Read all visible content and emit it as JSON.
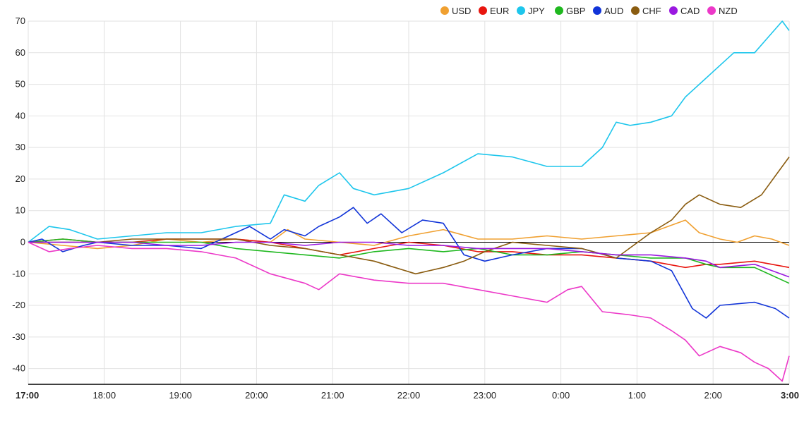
{
  "chart_data": {
    "type": "line",
    "title": "",
    "xlabel": "",
    "ylabel": "",
    "x_ticks": [
      "17:00",
      "18:00",
      "19:00",
      "20:00",
      "21:00",
      "22:00",
      "23:00",
      "0:00",
      "1:00",
      "2:00",
      "3:00"
    ],
    "x_ticks_bold": [
      "17:00",
      "3:00"
    ],
    "y_ticks": [
      70,
      60,
      50,
      40,
      30,
      20,
      10,
      0,
      -10,
      -20,
      -30,
      -40
    ],
    "ylim": [
      -45,
      70
    ],
    "x_range_hours": [
      0,
      10
    ],
    "grid": true,
    "legend_position": "top-right",
    "series": [
      {
        "name": "USD",
        "color": "#f0a030",
        "points": [
          [
            0,
            0
          ],
          [
            0.5,
            -1
          ],
          [
            1,
            -2
          ],
          [
            1.5,
            -1
          ],
          [
            2,
            1
          ],
          [
            2.5,
            0
          ],
          [
            3,
            1
          ],
          [
            3.5,
            0
          ],
          [
            3.75,
            4
          ],
          [
            4,
            1
          ],
          [
            4.5,
            0
          ],
          [
            5,
            -1
          ],
          [
            5.5,
            2
          ],
          [
            6,
            4
          ],
          [
            6.5,
            1
          ],
          [
            7,
            1
          ],
          [
            7.5,
            2
          ],
          [
            8,
            1
          ],
          [
            8.5,
            2
          ],
          [
            9,
            3
          ],
          [
            9.5,
            7
          ],
          [
            9.7,
            3
          ],
          [
            10,
            1
          ],
          [
            10.25,
            0
          ],
          [
            10.5,
            2
          ],
          [
            10.75,
            1
          ],
          [
            11,
            -1
          ]
        ]
      },
      {
        "name": "EUR",
        "color": "#e8150f",
        "points": [
          [
            0,
            0
          ],
          [
            0.5,
            1
          ],
          [
            1,
            0
          ],
          [
            1.5,
            0
          ],
          [
            2,
            1
          ],
          [
            2.5,
            1
          ],
          [
            3,
            1
          ],
          [
            3.5,
            0
          ],
          [
            4,
            -2
          ],
          [
            4.5,
            -4
          ],
          [
            5,
            -2
          ],
          [
            5.5,
            0
          ],
          [
            6,
            -1
          ],
          [
            6.5,
            -3
          ],
          [
            7,
            -3
          ],
          [
            7.5,
            -4
          ],
          [
            8,
            -4
          ],
          [
            8.5,
            -5
          ],
          [
            9,
            -6
          ],
          [
            9.5,
            -8
          ],
          [
            9.8,
            -7
          ],
          [
            10,
            -7
          ],
          [
            10.5,
            -6
          ],
          [
            11,
            -8
          ]
        ]
      },
      {
        "name": "JPY",
        "color": "#1ec6ec",
        "points": [
          [
            0,
            0
          ],
          [
            0.3,
            5
          ],
          [
            0.6,
            4
          ],
          [
            1,
            1
          ],
          [
            1.5,
            2
          ],
          [
            2,
            3
          ],
          [
            2.5,
            3
          ],
          [
            3,
            5
          ],
          [
            3.5,
            6
          ],
          [
            3.7,
            15
          ],
          [
            4,
            13
          ],
          [
            4.2,
            18
          ],
          [
            4.5,
            22
          ],
          [
            4.7,
            17
          ],
          [
            5,
            15
          ],
          [
            5.5,
            17
          ],
          [
            6,
            22
          ],
          [
            6.5,
            28
          ],
          [
            7,
            27
          ],
          [
            7.5,
            24
          ],
          [
            8,
            24
          ],
          [
            8.3,
            30
          ],
          [
            8.5,
            38
          ],
          [
            8.7,
            37
          ],
          [
            9,
            38
          ],
          [
            9.3,
            40
          ],
          [
            9.5,
            46
          ],
          [
            9.7,
            50
          ],
          [
            10,
            56
          ],
          [
            10.2,
            60
          ],
          [
            10.5,
            60
          ],
          [
            10.7,
            65
          ],
          [
            10.9,
            70
          ],
          [
            11,
            67
          ]
        ]
      },
      {
        "name": "GBP",
        "color": "#1fb81f",
        "points": [
          [
            0,
            0
          ],
          [
            0.5,
            1
          ],
          [
            1,
            0
          ],
          [
            1.5,
            0
          ],
          [
            2,
            0
          ],
          [
            2.5,
            0
          ],
          [
            3,
            -2
          ],
          [
            3.5,
            -3
          ],
          [
            4,
            -4
          ],
          [
            4.5,
            -5
          ],
          [
            5,
            -3
          ],
          [
            5.5,
            -2
          ],
          [
            6,
            -3
          ],
          [
            6.5,
            -2
          ],
          [
            7,
            -4
          ],
          [
            7.5,
            -4
          ],
          [
            8,
            -3
          ],
          [
            8.5,
            -4
          ],
          [
            9,
            -5
          ],
          [
            9.5,
            -5
          ],
          [
            9.8,
            -7
          ],
          [
            10,
            -8
          ],
          [
            10.5,
            -8
          ],
          [
            11,
            -13
          ]
        ]
      },
      {
        "name": "AUD",
        "color": "#1134d8",
        "points": [
          [
            0,
            0
          ],
          [
            0.2,
            1
          ],
          [
            0.5,
            -3
          ],
          [
            0.8,
            -1
          ],
          [
            1,
            0
          ],
          [
            1.5,
            -1
          ],
          [
            2,
            -1
          ],
          [
            2.5,
            -2
          ],
          [
            2.8,
            1
          ],
          [
            3,
            3
          ],
          [
            3.2,
            5
          ],
          [
            3.5,
            1
          ],
          [
            3.7,
            4
          ],
          [
            4,
            2
          ],
          [
            4.2,
            5
          ],
          [
            4.5,
            8
          ],
          [
            4.7,
            11
          ],
          [
            4.9,
            6
          ],
          [
            5.1,
            9
          ],
          [
            5.4,
            3
          ],
          [
            5.7,
            7
          ],
          [
            6,
            6
          ],
          [
            6.3,
            -4
          ],
          [
            6.6,
            -6
          ],
          [
            7,
            -4
          ],
          [
            7.5,
            -2
          ],
          [
            8,
            -2
          ],
          [
            8.5,
            -5
          ],
          [
            9,
            -6
          ],
          [
            9.3,
            -9
          ],
          [
            9.6,
            -21
          ],
          [
            9.8,
            -24
          ],
          [
            10,
            -20
          ],
          [
            10.5,
            -19
          ],
          [
            10.8,
            -21
          ],
          [
            11,
            -24
          ]
        ]
      },
      {
        "name": "CHF",
        "color": "#8a5c10",
        "points": [
          [
            0,
            0
          ],
          [
            0.5,
            0
          ],
          [
            1,
            0
          ],
          [
            1.5,
            1
          ],
          [
            2,
            1
          ],
          [
            2.5,
            1
          ],
          [
            3,
            1
          ],
          [
            3.5,
            -1
          ],
          [
            4,
            -2
          ],
          [
            4.5,
            -4
          ],
          [
            5,
            -6
          ],
          [
            5.3,
            -8
          ],
          [
            5.6,
            -10
          ],
          [
            6,
            -8
          ],
          [
            6.3,
            -6
          ],
          [
            6.6,
            -3
          ],
          [
            7,
            0
          ],
          [
            7.5,
            -1
          ],
          [
            8,
            -2
          ],
          [
            8.5,
            -5
          ],
          [
            9,
            3
          ],
          [
            9.3,
            7
          ],
          [
            9.5,
            12
          ],
          [
            9.7,
            15
          ],
          [
            10,
            12
          ],
          [
            10.3,
            11
          ],
          [
            10.6,
            15
          ],
          [
            10.8,
            21
          ],
          [
            11,
            27
          ]
        ]
      },
      {
        "name": "CAD",
        "color": "#9a18e0",
        "points": [
          [
            0,
            0
          ],
          [
            0.5,
            0
          ],
          [
            1,
            0
          ],
          [
            1.5,
            0
          ],
          [
            2,
            -1
          ],
          [
            2.5,
            -1
          ],
          [
            3,
            0
          ],
          [
            3.5,
            0
          ],
          [
            4,
            -1
          ],
          [
            4.5,
            0
          ],
          [
            5,
            0
          ],
          [
            5.5,
            -1
          ],
          [
            6,
            -1
          ],
          [
            6.5,
            -2
          ],
          [
            7,
            -2
          ],
          [
            7.5,
            -2
          ],
          [
            8,
            -3
          ],
          [
            8.5,
            -4
          ],
          [
            9,
            -4
          ],
          [
            9.5,
            -5
          ],
          [
            9.8,
            -6
          ],
          [
            10,
            -8
          ],
          [
            10.5,
            -7
          ],
          [
            11,
            -11
          ]
        ]
      },
      {
        "name": "NZD",
        "color": "#ec38c8",
        "points": [
          [
            0,
            0
          ],
          [
            0.3,
            -3
          ],
          [
            0.6,
            -2
          ],
          [
            1,
            -1
          ],
          [
            1.5,
            -2
          ],
          [
            2,
            -2
          ],
          [
            2.5,
            -3
          ],
          [
            3,
            -5
          ],
          [
            3.5,
            -10
          ],
          [
            4,
            -13
          ],
          [
            4.2,
            -15
          ],
          [
            4.5,
            -10
          ],
          [
            5,
            -12
          ],
          [
            5.5,
            -13
          ],
          [
            6,
            -13
          ],
          [
            6.5,
            -15
          ],
          [
            7,
            -17
          ],
          [
            7.5,
            -19
          ],
          [
            7.8,
            -15
          ],
          [
            8,
            -14
          ],
          [
            8.3,
            -22
          ],
          [
            8.7,
            -23
          ],
          [
            9,
            -24
          ],
          [
            9.3,
            -28
          ],
          [
            9.5,
            -31
          ],
          [
            9.7,
            -36
          ],
          [
            10,
            -33
          ],
          [
            10.3,
            -35
          ],
          [
            10.5,
            -38
          ],
          [
            10.7,
            -40
          ],
          [
            10.9,
            -44
          ],
          [
            11,
            -36
          ]
        ]
      }
    ]
  }
}
